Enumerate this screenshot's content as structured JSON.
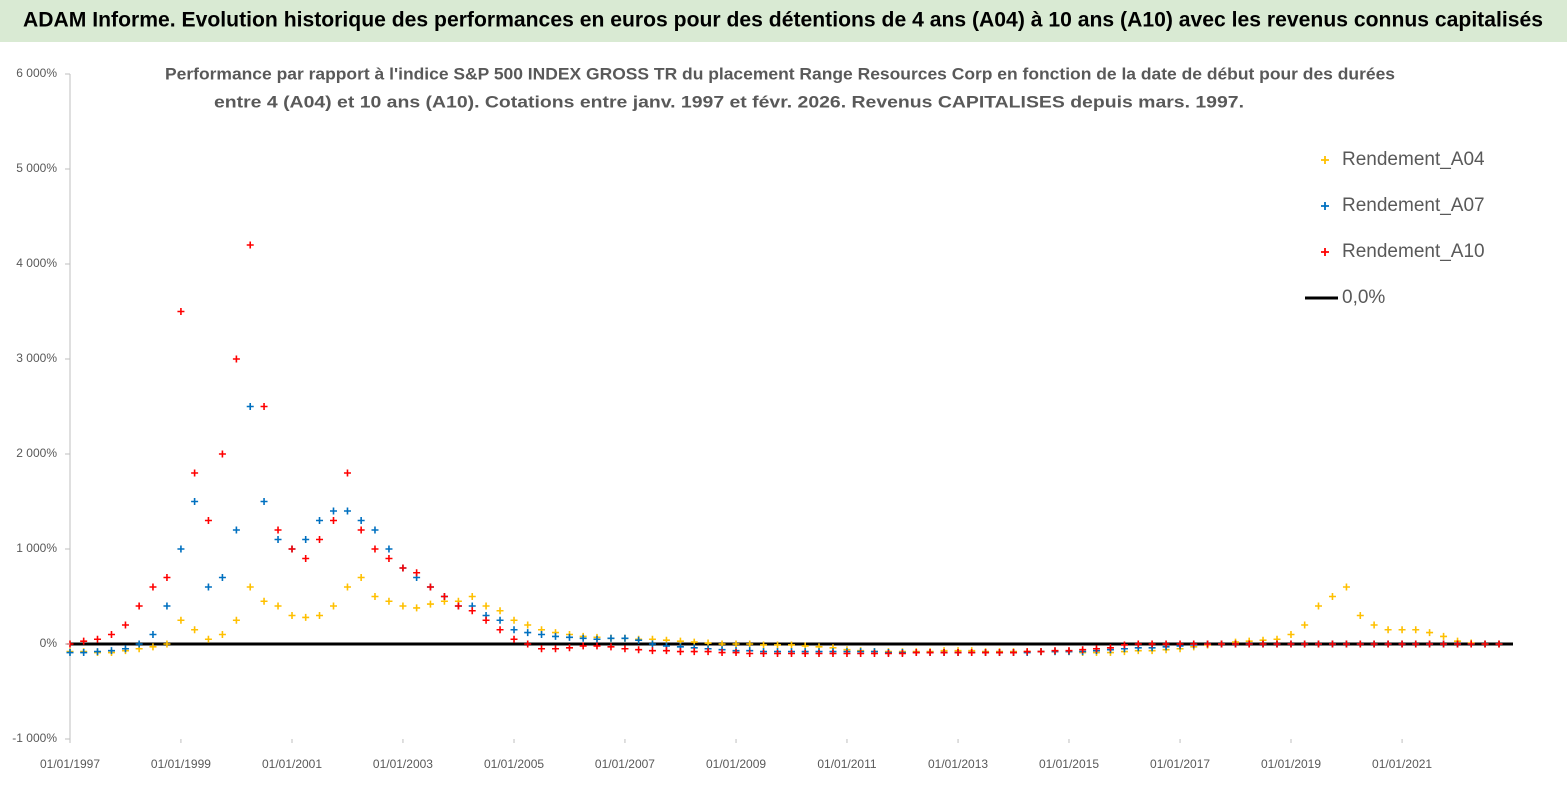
{
  "chart_data": {
    "type": "scatter",
    "title": "ADAM Informe. Evolution historique des performances en euros pour des détentions de 4 ans (A04) à 10 ans (A10) avec les revenus connus capitalisés",
    "subtitle": [
      "Performance par rapport à l'indice S&P 500 INDEX GROSS TR  du placement Range Resources Corp en fonction de la date de début pour des durées",
      "entre 4 (A04) et 10 ans (A10).  Cotations entre janv. 1997 et févr. 2026. Revenus  CAPITALISES depuis mars. 1997."
    ],
    "x": [
      "1997-01-01",
      "1997-04-01",
      "1997-07-01",
      "1997-10-01",
      "1998-01-01",
      "1998-04-01",
      "1998-07-01",
      "1998-10-01",
      "1999-01-01",
      "1999-04-01",
      "1999-07-01",
      "1999-10-01",
      "2000-01-01",
      "2000-04-01",
      "2000-07-01",
      "2000-10-01",
      "2001-01-01",
      "2001-04-01",
      "2001-07-01",
      "2001-10-01",
      "2002-01-01",
      "2002-04-01",
      "2002-07-01",
      "2002-10-01",
      "2003-01-01",
      "2003-04-01",
      "2003-07-01",
      "2003-10-01",
      "2004-01-01",
      "2004-04-01",
      "2004-07-01",
      "2004-10-01",
      "2005-01-01",
      "2005-04-01",
      "2005-07-01",
      "2005-10-01",
      "2006-01-01",
      "2006-04-01",
      "2006-07-01",
      "2006-10-01",
      "2007-01-01",
      "2007-04-01",
      "2007-07-01",
      "2007-10-01",
      "2008-01-01",
      "2008-04-01",
      "2008-07-01",
      "2008-10-01",
      "2009-01-01",
      "2009-04-01",
      "2009-07-01",
      "2009-10-01",
      "2010-01-01",
      "2010-04-01",
      "2010-07-01",
      "2010-10-01",
      "2011-01-01",
      "2011-04-01",
      "2011-07-01",
      "2011-10-01",
      "2012-01-01",
      "2012-04-01",
      "2012-07-01",
      "2012-10-01",
      "2013-01-01",
      "2013-04-01",
      "2013-07-01",
      "2013-10-01",
      "2014-01-01",
      "2014-04-01",
      "2014-07-01",
      "2014-10-01",
      "2015-01-01",
      "2015-04-01",
      "2015-07-01",
      "2015-10-01",
      "2016-01-01",
      "2016-04-01",
      "2016-07-01",
      "2016-10-01",
      "2017-01-01",
      "2017-04-01",
      "2017-07-01",
      "2017-10-01",
      "2018-01-01",
      "2018-04-01",
      "2018-07-01",
      "2018-10-01",
      "2019-01-01",
      "2019-04-01",
      "2019-07-01",
      "2019-10-01",
      "2020-01-01",
      "2020-04-01",
      "2020-07-01",
      "2020-10-01",
      "2021-01-01",
      "2021-04-01",
      "2021-07-01",
      "2021-10-01",
      "2022-01-01",
      "2022-04-01",
      "2022-07-01",
      "2022-10-01"
    ],
    "series": [
      {
        "name": "Rendement_A04",
        "color": "#ffc000",
        "values": [
          -80,
          -80,
          -90,
          -90,
          -70,
          -50,
          -30,
          0,
          250,
          150,
          50,
          100,
          250,
          600,
          450,
          400,
          300,
          280,
          300,
          400,
          600,
          700,
          500,
          450,
          400,
          380,
          420,
          450,
          450,
          500,
          400,
          350,
          250,
          200,
          150,
          120,
          100,
          80,
          70,
          60,
          60,
          50,
          50,
          40,
          30,
          20,
          10,
          0,
          0,
          0,
          -10,
          -10,
          -10,
          -20,
          -30,
          -40,
          -60,
          -70,
          -80,
          -80,
          -80,
          -80,
          -80,
          -70,
          -70,
          -70,
          -80,
          -80,
          -80,
          -80,
          -80,
          -80,
          -80,
          -90,
          -90,
          -90,
          -80,
          -70,
          -70,
          -60,
          -50,
          -30,
          -10,
          0,
          20,
          30,
          40,
          50,
          100,
          200,
          400,
          500,
          600,
          300,
          200,
          150,
          150,
          150,
          120,
          80,
          30,
          10,
          0,
          0
        ]
      },
      {
        "name": "Rendement_A07",
        "color": "#0070c0",
        "values": [
          -90,
          -90,
          -80,
          -70,
          -50,
          0,
          100,
          400,
          1000,
          1500,
          600,
          700,
          1200,
          2500,
          1500,
          1100,
          1000,
          1100,
          1300,
          1400,
          1400,
          1300,
          1200,
          1000,
          800,
          700,
          600,
          500,
          400,
          400,
          300,
          250,
          150,
          120,
          100,
          80,
          70,
          60,
          50,
          60,
          60,
          40,
          0,
          -20,
          -30,
          -40,
          -50,
          -60,
          -70,
          -70,
          -80,
          -80,
          -80,
          -80,
          -80,
          -80,
          -80,
          -80,
          -80,
          -90,
          -90,
          -90,
          -90,
          -90,
          -90,
          -90,
          -90,
          -90,
          -90,
          -90,
          -80,
          -80,
          -80,
          -80,
          -70,
          -60,
          -50,
          -40,
          -40,
          -30,
          -20,
          -10,
          0,
          0,
          0,
          0,
          0,
          0,
          0,
          0,
          0,
          0,
          0,
          0,
          0,
          0,
          0,
          0,
          0,
          0,
          0,
          0,
          0,
          0
        ]
      },
      {
        "name": "Rendement_A10",
        "color": "#ff0000",
        "values": [
          0,
          30,
          50,
          100,
          200,
          400,
          600,
          700,
          3500,
          1800,
          1300,
          2000,
          3000,
          4200,
          2500,
          1200,
          1000,
          900,
          1100,
          1300,
          1800,
          1200,
          1000,
          900,
          800,
          750,
          600,
          500,
          400,
          350,
          250,
          150,
          50,
          0,
          -50,
          -50,
          -40,
          -20,
          -20,
          -30,
          -50,
          -60,
          -70,
          -70,
          -80,
          -80,
          -80,
          -90,
          -90,
          -100,
          -100,
          -100,
          -100,
          -100,
          -100,
          -100,
          -100,
          -100,
          -100,
          -100,
          -100,
          -90,
          -90,
          -90,
          -90,
          -90,
          -90,
          -90,
          -90,
          -80,
          -80,
          -70,
          -70,
          -60,
          -50,
          -40,
          -10,
          0,
          0,
          0,
          0,
          0,
          0,
          0,
          0,
          0,
          0,
          0,
          0,
          0,
          0,
          0,
          0,
          0,
          0,
          0,
          0,
          0,
          0,
          0,
          0,
          0,
          0,
          0
        ]
      }
    ],
    "reference_line": {
      "name": "0,0%",
      "value": 0,
      "color": "#000000"
    },
    "xlim": [
      "1997-01-01",
      "2023-01-01"
    ],
    "xticks": [
      {
        "value": "1997-01-01",
        "label": "01/01/1997"
      },
      {
        "value": "1999-01-01",
        "label": "01/01/1999"
      },
      {
        "value": "2001-01-01",
        "label": "01/01/2001"
      },
      {
        "value": "2003-01-01",
        "label": "01/01/2003"
      },
      {
        "value": "2005-01-01",
        "label": "01/01/2005"
      },
      {
        "value": "2007-01-01",
        "label": "01/01/2007"
      },
      {
        "value": "2009-01-01",
        "label": "01/01/2009"
      },
      {
        "value": "2011-01-01",
        "label": "01/01/2011"
      },
      {
        "value": "2013-01-01",
        "label": "01/01/2013"
      },
      {
        "value": "2015-01-01",
        "label": "01/01/2015"
      },
      {
        "value": "2017-01-01",
        "label": "01/01/2017"
      },
      {
        "value": "2019-01-01",
        "label": "01/01/2019"
      },
      {
        "value": "2021-01-01",
        "label": "01/01/2021"
      }
    ],
    "ylim": [
      -1000,
      6000
    ],
    "yticks": [
      {
        "value": -1000,
        "label": "-1 000%"
      },
      {
        "value": 0,
        "label": "0%"
      },
      {
        "value": 1000,
        "label": "1 000%"
      },
      {
        "value": 2000,
        "label": "2 000%"
      },
      {
        "value": 3000,
        "label": "3 000%"
      },
      {
        "value": 4000,
        "label": "4 000%"
      },
      {
        "value": 5000,
        "label": "5 000%"
      },
      {
        "value": 6000,
        "label": "6 000%"
      }
    ],
    "grid": false,
    "legend": "top-right"
  }
}
